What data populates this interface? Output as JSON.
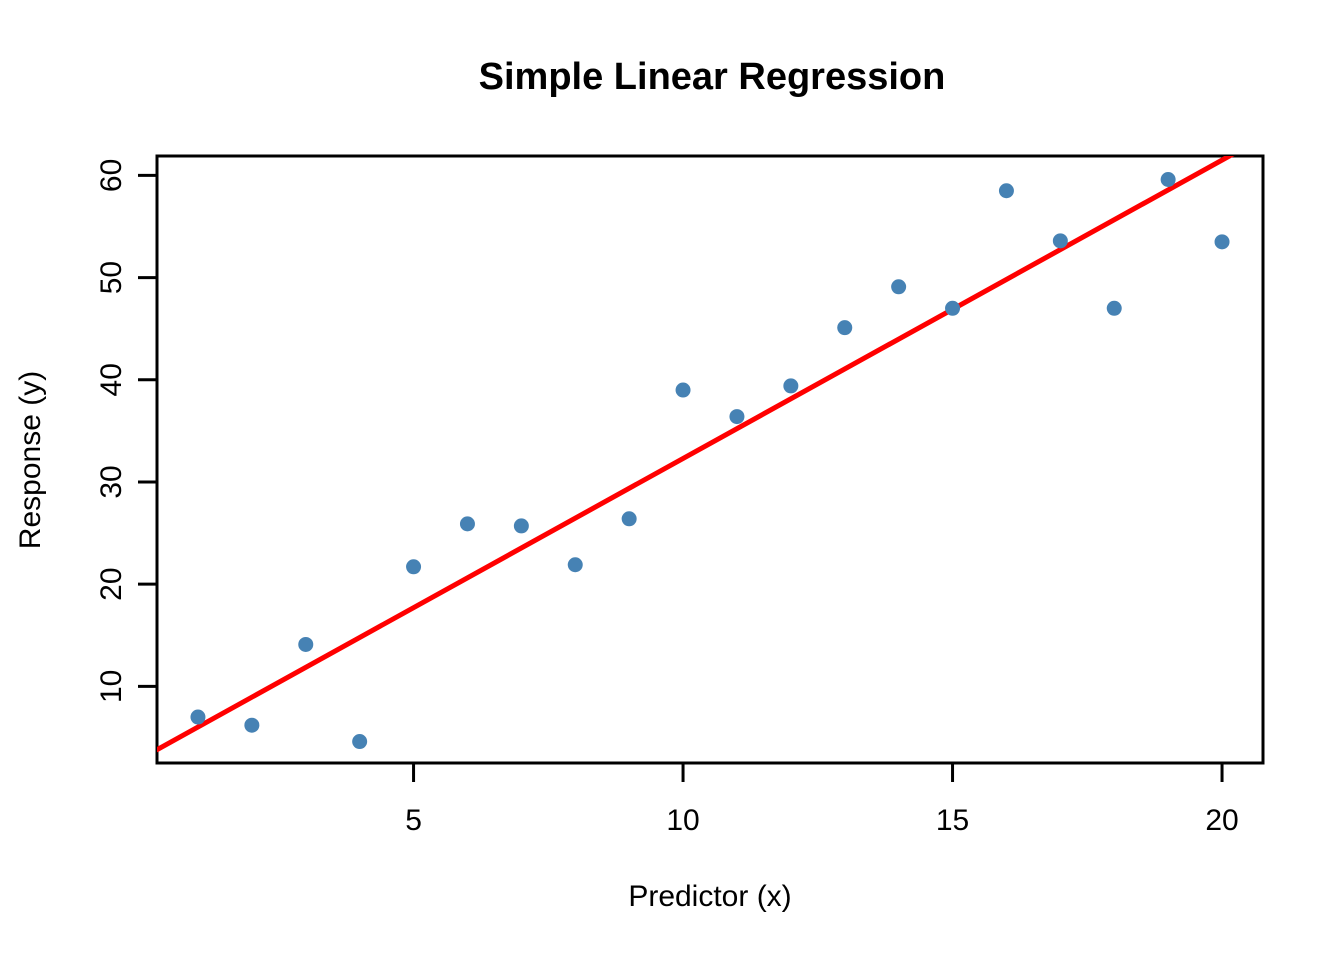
{
  "figure": {
    "title": "Simple Linear Regression",
    "background_color": "#FFFFFF",
    "text_color": "#000000"
  },
  "chart_data": {
    "type": "scatter",
    "title": "Simple Linear Regression",
    "xlabel": "Predictor (x)",
    "ylabel": "Response (y)",
    "x": [
      1,
      2,
      3,
      4,
      5,
      6,
      7,
      8,
      9,
      10,
      11,
      12,
      13,
      14,
      15,
      16,
      17,
      18,
      19,
      20
    ],
    "y": [
      7.0,
      6.2,
      14.1,
      4.6,
      21.7,
      25.9,
      25.7,
      21.9,
      26.4,
      39.0,
      36.4,
      39.4,
      45.1,
      49.1,
      47.0,
      58.5,
      53.6,
      47.0,
      59.6,
      53.5
    ],
    "xticks": [
      5,
      10,
      15,
      20
    ],
    "yticks": [
      10,
      20,
      30,
      40,
      50,
      60
    ],
    "xlim": [
      0.24,
      20.76
    ],
    "ylim": [
      2.5,
      61.9
    ],
    "grid": false,
    "legend": null,
    "point_color": "#4682B4",
    "axis_color": "#000000",
    "fit_line": {
      "name": "regression-line",
      "model": "y = 3.1 + 2.92x",
      "intercept": 3.1,
      "slope": 2.92,
      "color": "#FF0000"
    }
  }
}
